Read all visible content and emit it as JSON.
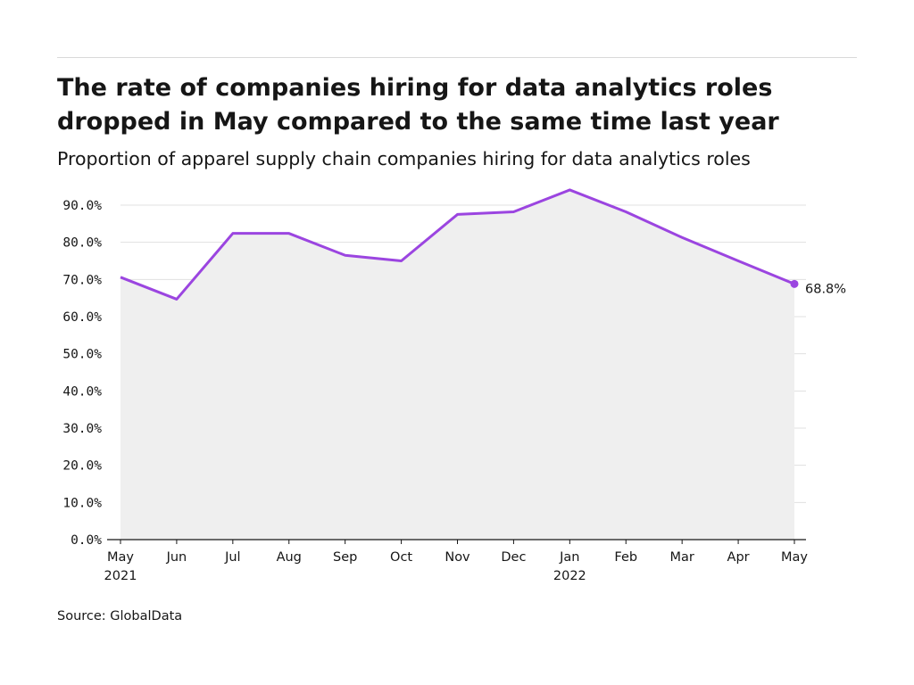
{
  "header": {
    "title_lines": [
      "The rate of companies hiring for data analytics roles",
      "dropped in May compared to the same time last year"
    ],
    "subtitle": "Proportion of apparel supply chain companies hiring for data analytics roles"
  },
  "footer": {
    "source": "Source: GlobalData"
  },
  "colors": {
    "line": "#9b45e0",
    "area": "#efefef",
    "grid": "#e0e0e0",
    "axis": "#161616"
  },
  "chart_data": {
    "type": "area",
    "title": "The rate of companies hiring for data analytics roles dropped in May compared to the same time last year",
    "subtitle": "Proportion of apparel supply chain companies hiring for data analytics roles",
    "x": [
      "May 2021",
      "Jun 2021",
      "Jul 2021",
      "Aug 2021",
      "Sep 2021",
      "Oct 2021",
      "Nov 2021",
      "Dec 2021",
      "Jan 2022",
      "Feb 2022",
      "Mar 2022",
      "Apr 2022",
      "May 2022"
    ],
    "x_tick_labels": [
      [
        "May",
        "2021"
      ],
      [
        "Jun"
      ],
      [
        "Jul"
      ],
      [
        "Aug"
      ],
      [
        "Sep"
      ],
      [
        "Oct"
      ],
      [
        "Nov"
      ],
      [
        "Dec"
      ],
      [
        "Jan",
        "2022"
      ],
      [
        "Feb"
      ],
      [
        "Mar"
      ],
      [
        "Apr"
      ],
      [
        "May"
      ]
    ],
    "series": [
      {
        "values": [
          70.6,
          64.7,
          82.4,
          82.4,
          76.5,
          75.0,
          87.5,
          88.2,
          94.1,
          88.2,
          81.3,
          75.0,
          68.8
        ]
      }
    ],
    "y_ticks": [
      0,
      10,
      20,
      30,
      40,
      50,
      60,
      70,
      80,
      90
    ],
    "y_tick_labels": [
      "0.0%",
      "10.0%",
      "20.0%",
      "30.0%",
      "40.0%",
      "50.0%",
      "60.0%",
      "70.0%",
      "80.0%",
      "90.0%"
    ],
    "ylim": [
      0,
      90
    ],
    "end_label": "68.8%",
    "grid": true,
    "legend": "none"
  }
}
